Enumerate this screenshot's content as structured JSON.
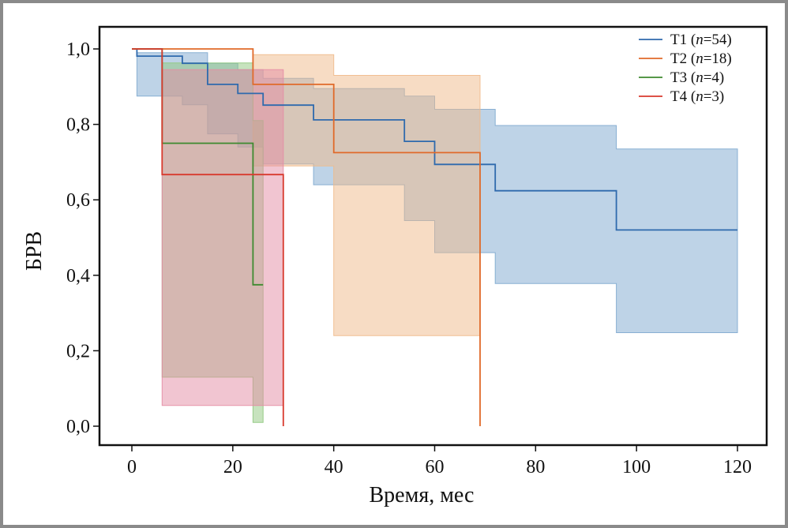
{
  "chart_data": {
    "type": "line",
    "subtype": "kaplan-meier step curves with confidence bands",
    "xlabel": "Время, мес",
    "ylabel": "БРВ",
    "xlim": [
      0,
      120
    ],
    "ylim": [
      0,
      1
    ],
    "x_ticks": [
      0,
      20,
      40,
      60,
      80,
      100,
      120
    ],
    "x_tick_labels": [
      "0",
      "20",
      "40",
      "60",
      "80",
      "100",
      "120"
    ],
    "y_ticks": [
      0,
      0.2,
      0.4,
      0.6,
      0.8,
      1.0
    ],
    "y_tick_labels": [
      "0,0",
      "0,2",
      "0,4",
      "0,6",
      "0,8",
      "1,0"
    ],
    "grid": false,
    "legend_position": "top-right",
    "series": [
      {
        "name": "T1",
        "n_label": "n",
        "n_value": "=54)",
        "label_prefix": "T1 (",
        "color": "#2f6aad",
        "band_color": "#7ea8cf",
        "x": [
          0,
          1,
          6,
          10,
          15,
          21,
          26,
          36,
          54,
          60,
          72,
          96,
          120
        ],
        "y": [
          1.0,
          0.981,
          0.981,
          0.962,
          0.906,
          0.882,
          0.851,
          0.812,
          0.755,
          0.694,
          0.624,
          0.52,
          0.52
        ],
        "lower": [
          1.0,
          0.875,
          0.875,
          0.852,
          0.775,
          0.74,
          0.695,
          0.64,
          0.545,
          0.46,
          0.378,
          0.248,
          0.248
        ],
        "upper": [
          1.0,
          0.99,
          0.99,
          0.99,
          0.962,
          0.945,
          0.922,
          0.895,
          0.875,
          0.84,
          0.797,
          0.735,
          0.735
        ]
      },
      {
        "name": "T2",
        "n_label": "n",
        "n_value": "=18)",
        "label_prefix": "T2 (",
        "color": "#e06a2a",
        "band_color": "#f0b98a",
        "x": [
          0,
          24,
          40,
          69
        ],
        "y": [
          1.0,
          0.906,
          0.725,
          0.725
        ],
        "lower": [
          1.0,
          0.69,
          0.24,
          0.24
        ],
        "upper": [
          1.0,
          0.985,
          0.93,
          0.93
        ],
        "end_drop": [
          69,
          0.0
        ]
      },
      {
        "name": "T3",
        "n_label": "n",
        "n_value": "=4)",
        "label_prefix": "T3 (",
        "color": "#3e8a2f",
        "band_color": "#8fc87e",
        "x": [
          0,
          6,
          24,
          26
        ],
        "y": [
          1.0,
          0.75,
          0.375,
          0.375
        ],
        "lower": [
          1.0,
          0.13,
          0.01,
          0.01
        ],
        "upper": [
          1.0,
          0.963,
          0.81,
          0.81
        ]
      },
      {
        "name": "T4",
        "n_label": "n",
        "n_value": "=3)",
        "label_prefix": "T4 (",
        "color": "#d83a2e",
        "band_color": "#e48ca4",
        "x": [
          0,
          6,
          30
        ],
        "y": [
          1.0,
          0.667,
          0.667
        ],
        "lower": [
          1.0,
          0.055,
          0.055
        ],
        "upper": [
          1.0,
          0.945,
          0.945
        ],
        "end_drop": [
          30,
          0.0
        ]
      }
    ]
  }
}
